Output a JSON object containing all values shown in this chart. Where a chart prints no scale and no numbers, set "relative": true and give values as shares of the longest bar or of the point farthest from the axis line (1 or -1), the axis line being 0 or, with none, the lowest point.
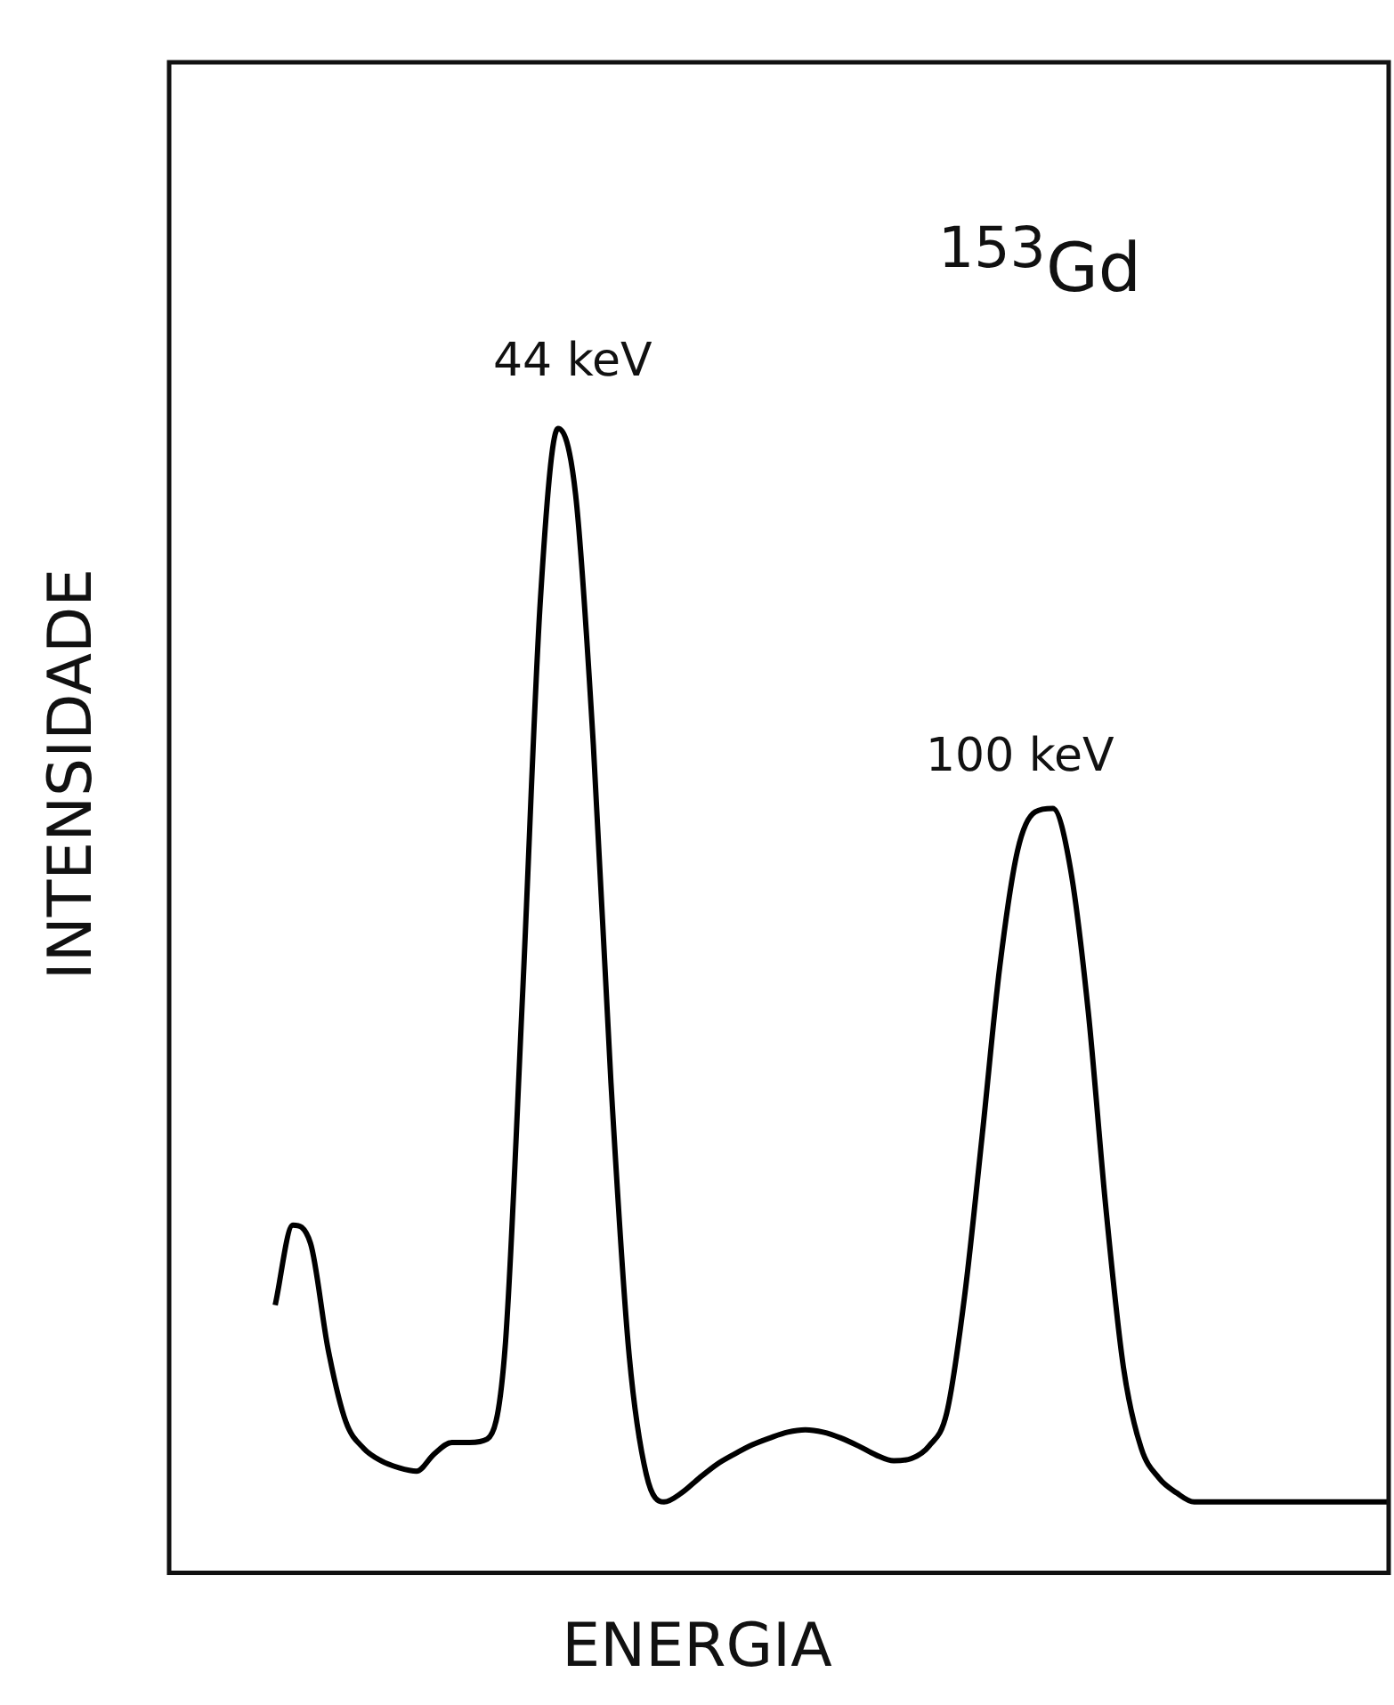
{
  "chart_data": {
    "type": "line",
    "relative": true,
    "xlabel": "ENERGIA",
    "ylabel": "INTENSIDADE",
    "color": "#000000",
    "grid": false,
    "legend": false,
    "marker": "none",
    "line_style": "solid",
    "annotations": [
      "$^{153}$Gd",
      "44 keV",
      "100 keV"
    ],
    "categories": [
      null,
      null,
      null,
      null,
      null,
      null,
      null,
      null,
      null,
      null,
      null,
      null,
      null,
      null,
      null,
      null,
      null,
      null,
      null,
      null,
      null,
      null,
      null,
      null,
      null,
      null,
      null,
      null,
      null,
      null,
      null,
      null,
      null,
      null,
      null,
      null,
      null,
      null,
      null,
      null,
      null,
      null,
      null,
      null,
      null,
      null,
      null,
      null,
      null,
      null,
      null,
      null,
      null,
      null,
      null,
      null,
      null,
      null,
      null,
      null,
      null,
      null,
      null,
      null,
      null,
      null,
      null,
      null,
      null,
      null
    ],
    "values": [
      null,
      null,
      null,
      null,
      null,
      null,
      0.234,
      0.304,
      0.288,
      0.195,
      0.132,
      0.109,
      0.098,
      0.092,
      0.089,
      0.104,
      0.114,
      0.114,
      0.117,
      0.195,
      0.506,
      0.849,
      1,
      0.942,
      0.724,
      0.428,
      0.195,
      0.086,
      0.062,
      0.07,
      0.083,
      0.095,
      0.104,
      0.112,
      0.118,
      0.123,
      0.125,
      0.123,
      0.118,
      0.111,
      0.103,
      0.098,
      0.1,
      0.111,
      0.14,
      0.241,
      0.382,
      0.53,
      0.631,
      0.665,
      0.668,
      0.615,
      0.491,
      0.319,
      0.179,
      0.109,
      0.083,
      0.07,
      0.062,
      0.062,
      0.062,
      0.062,
      0.062,
      0.062,
      0.062,
      0.062,
      0.062,
      0.062,
      0.062,
      0.062
    ]
  }
}
